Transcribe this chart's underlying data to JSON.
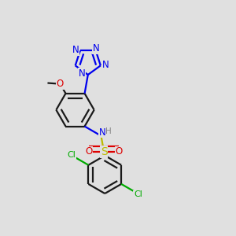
{
  "background_color": "#e0e0e0",
  "bond_color": "#1a1a1a",
  "bond_width": 1.6,
  "atom_colors": {
    "N": "#0000ee",
    "O": "#dd0000",
    "S": "#bbbb00",
    "Cl": "#00aa00",
    "NH_N": "#0000ee",
    "NH_H": "#888888",
    "C": "#1a1a1a"
  },
  "font_size": 8.5,
  "font_size_small": 7.0,
  "BL": 0.082
}
